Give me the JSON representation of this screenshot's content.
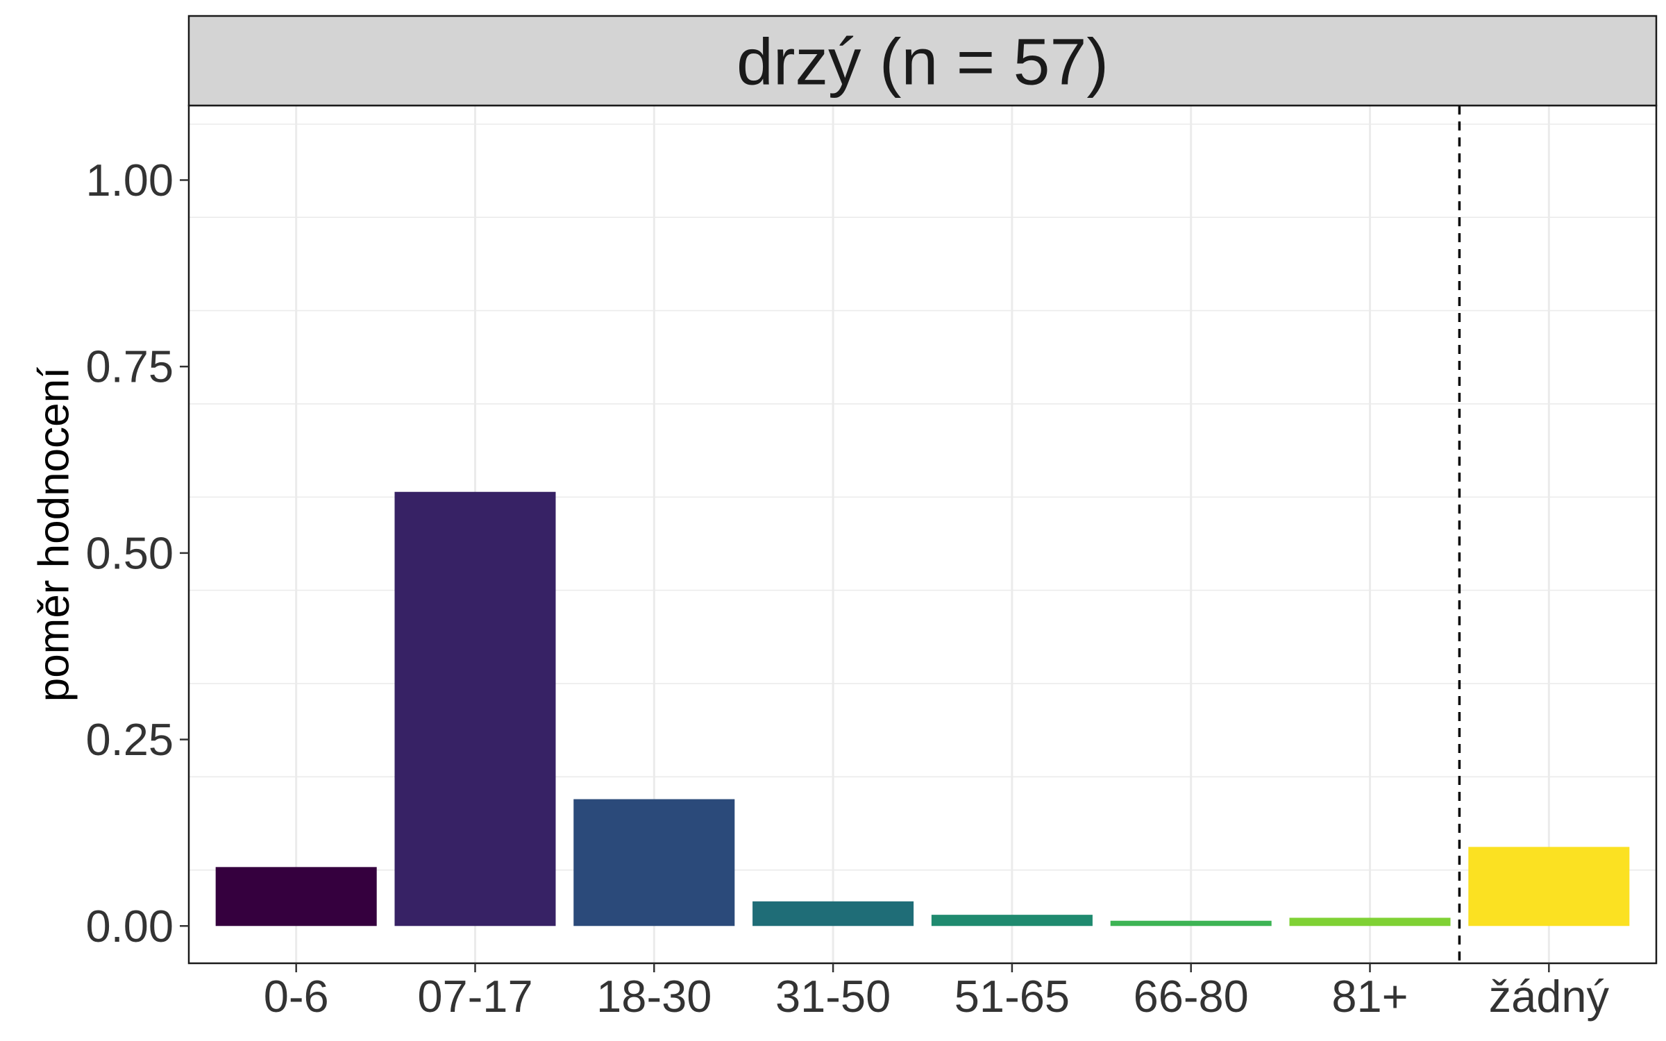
{
  "chart_data": {
    "type": "bar",
    "facet_label": "drzý (n = 57)",
    "ylabel": "poměr hodnocení",
    "xlabel": "",
    "categories": [
      "0-6",
      "07-17",
      "18-30",
      "31-50",
      "51-65",
      "66-80",
      "81+",
      "žádný"
    ],
    "values": [
      0.079,
      0.582,
      0.17,
      0.033,
      0.015,
      0.007,
      0.011,
      0.106
    ],
    "colors": [
      "#35003e",
      "#372265",
      "#2b4a7a",
      "#1f6d77",
      "#1f8a6f",
      "#3db454",
      "#7fd134",
      "#fbe122"
    ],
    "ylim": [
      -0.05,
      1.1
    ],
    "yticks": [
      "0.00",
      "0.25",
      "0.50",
      "0.75",
      "1.00"
    ],
    "ytick_values": [
      0,
      0.25,
      0.5,
      0.75,
      1.0
    ],
    "reference_line": {
      "after_category": "81+",
      "style": "dashed"
    },
    "grid": true,
    "legend": "none"
  }
}
